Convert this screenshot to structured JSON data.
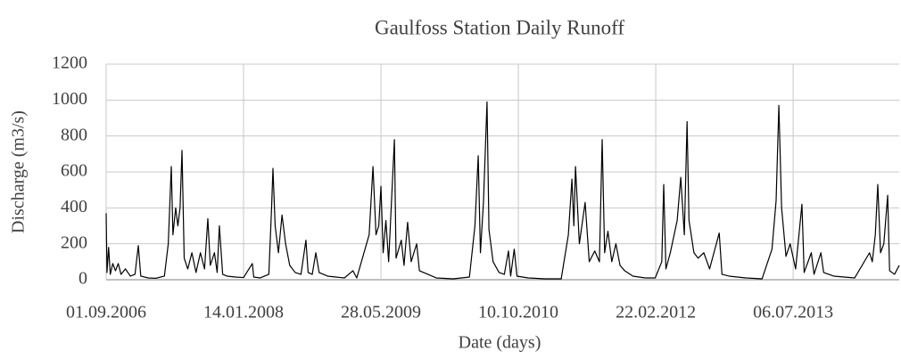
{
  "chart_data": {
    "type": "line",
    "title": "Gaulfoss Station Daily Runoff",
    "x_label": "Date (days)",
    "y_label": "Discharge (m3/s)",
    "xlim": [
      "01.09.2006",
      "27.07.2014"
    ],
    "xticks": [
      "01.09.2006",
      "14.01.2008",
      "28.05.2009",
      "10.10.2010",
      "22.02.2012",
      "06.07.2013"
    ],
    "ylim": [
      0,
      1200
    ],
    "yticks": [
      0,
      200,
      400,
      600,
      800,
      1000,
      1200
    ],
    "grid": true,
    "x": [
      "01.09.2006",
      "04.09.2006",
      "10.09.2006",
      "16.09.2006",
      "25.09.2006",
      "05.10.2006",
      "15.10.2006",
      "25.10.2006",
      "10.11.2006",
      "28.11.2006",
      "15.12.2006",
      "27.12.2006",
      "05.01.2007",
      "01.02.2007",
      "01.03.2007",
      "01.04.2007",
      "15.04.2007",
      "26.04.2007",
      "02.05.2007",
      "12.05.2007",
      "20.05.2007",
      "28.05.2007",
      "04.06.2007",
      "12.06.2007",
      "25.06.2007",
      "10.07.2007",
      "25.07.2007",
      "10.08.2007",
      "25.08.2007",
      "06.09.2007",
      "15.09.2007",
      "30.09.2007",
      "10.10.2007",
      "18.10.2007",
      "30.10.2007",
      "15.11.2007",
      "15.12.2007",
      "14.01.2008",
      "15.02.2008",
      "20.02.2008",
      "15.03.2008",
      "15.04.2008",
      "25.04.2008",
      "30.04.2008",
      "08.05.2008",
      "20.05.2008",
      "02.06.2008",
      "15.06.2008",
      "30.06.2008",
      "20.07.2008",
      "10.08.2008",
      "28.08.2008",
      "05.09.2008",
      "20.09.2008",
      "03.10.2008",
      "15.10.2008",
      "15.11.2008",
      "15.12.2008",
      "15.01.2009",
      "15.02.2009",
      "01.03.2009",
      "15.04.2009",
      "29.04.2009",
      "10.05.2009",
      "20.05.2009",
      "28.05.2009",
      "05.06.2009",
      "15.06.2009",
      "25.06.2009",
      "16.07.2009",
      "22.07.2009",
      "10.08.2009",
      "20.08.2009",
      "02.09.2009",
      "15.09.2009",
      "05.10.2009",
      "15.10.2009",
      "15.11.2009",
      "15.12.2009",
      "15.02.2010",
      "15.04.2010",
      "05.05.2010",
      "17.05.2010",
      "25.05.2010",
      "05.06.2010",
      "18.06.2010",
      "25.06.2010",
      "10.07.2010",
      "01.08.2010",
      "20.08.2010",
      "04.09.2010",
      "12.09.2010",
      "25.09.2010",
      "05.10.2010",
      "15.11.2010",
      "15.01.2011",
      "15.03.2011",
      "10.04.2011",
      "23.04.2011",
      "30.04.2011",
      "06.05.2011",
      "20.05.2011",
      "10.06.2011",
      "25.06.2011",
      "15.07.2011",
      "01.08.2011",
      "11.08.2011",
      "20.08.2011",
      "01.09.2011",
      "15.09.2011",
      "30.09.2011",
      "15.10.2011",
      "01.11.2011",
      "01.12.2011",
      "15.01.2012",
      "20.02.2012",
      "15.03.2012",
      "22.03.2012",
      "30.03.2012",
      "15.04.2012",
      "10.05.2012",
      "23.05.2012",
      "05.06.2012",
      "15.06.2012",
      "22.06.2012",
      "10.07.2012",
      "25.07.2012",
      "15.08.2012",
      "05.09.2012",
      "10.10.2012",
      "20.10.2012",
      "15.11.2012",
      "15.01.2013",
      "15.03.2013",
      "20.04.2013",
      "05.05.2013",
      "15.05.2013",
      "25.05.2013",
      "10.06.2013",
      "25.06.2013",
      "15.07.2013",
      "07.08.2013",
      "15.08.2013",
      "10.09.2013",
      "20.09.2013",
      "15.10.2013",
      "25.10.2013",
      "01.12.2013",
      "15.02.2014",
      "10.04.2014",
      "20.04.2014",
      "01.05.2014",
      "10.05.2014",
      "20.05.2014",
      "01.06.2014",
      "15.06.2014",
      "22.06.2014",
      "10.07.2014",
      "27.07.2014"
    ],
    "series": [
      {
        "color": "#000000",
        "values": [
          370,
          40,
          180,
          30,
          90,
          50,
          90,
          30,
          60,
          20,
          30,
          190,
          20,
          10,
          8,
          20,
          200,
          630,
          250,
          400,
          300,
          400,
          720,
          120,
          60,
          150,
          40,
          150,
          60,
          340,
          80,
          150,
          40,
          300,
          30,
          20,
          15,
          12,
          90,
          15,
          10,
          30,
          400,
          620,
          300,
          150,
          360,
          200,
          80,
          40,
          30,
          220,
          40,
          30,
          150,
          40,
          20,
          15,
          10,
          50,
          10,
          250,
          630,
          250,
          300,
          520,
          150,
          330,
          100,
          780,
          120,
          220,
          80,
          320,
          100,
          200,
          50,
          30,
          10,
          5,
          15,
          300,
          690,
          150,
          430,
          990,
          280,
          100,
          40,
          30,
          160,
          20,
          170,
          20,
          10,
          5,
          5,
          250,
          560,
          300,
          630,
          200,
          430,
          100,
          160,
          100,
          780,
          150,
          270,
          100,
          200,
          80,
          50,
          20,
          10,
          10,
          100,
          530,
          60,
          150,
          330,
          570,
          250,
          880,
          330,
          150,
          120,
          150,
          60,
          260,
          30,
          20,
          10,
          5,
          170,
          440,
          970,
          400,
          130,
          200,
          60,
          420,
          40,
          150,
          30,
          150,
          40,
          20,
          10,
          150,
          100,
          250,
          530,
          150,
          200,
          470,
          50,
          30,
          80
        ]
      }
    ]
  }
}
